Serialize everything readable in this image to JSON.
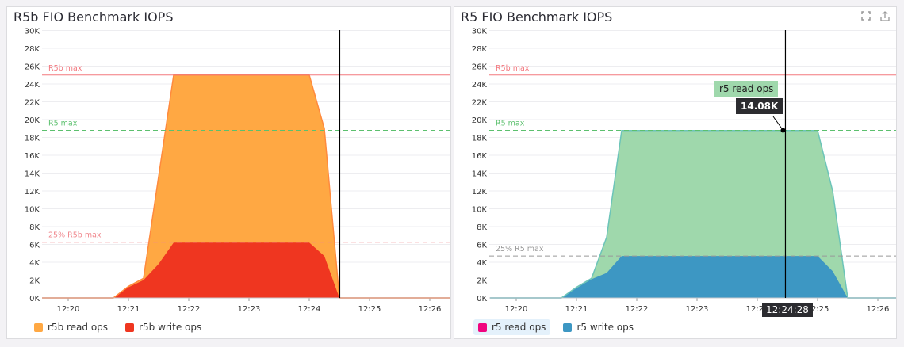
{
  "chart_data": [
    {
      "type": "area",
      "stacked": true,
      "title": "R5b FIO Benchmark IOPS",
      "xlim": [
        "12:19:34",
        "12:26:20"
      ],
      "ylim": [
        0,
        30
      ],
      "y_unit_suffix": "K",
      "yticks": [
        "0K",
        "2K",
        "4K",
        "6K",
        "8K",
        "10K",
        "12K",
        "14K",
        "16K",
        "18K",
        "20K",
        "22K",
        "24K",
        "26K",
        "28K",
        "30K"
      ],
      "xticks": [
        "12:20",
        "12:21",
        "12:22",
        "12:23",
        "12:24",
        "12:25",
        "12:26"
      ],
      "grid": true,
      "legend_placement": "bottom-left",
      "x": [
        "12:19:34",
        "12:20:45",
        "12:21:00",
        "12:21:15",
        "12:21:30",
        "12:21:45",
        "12:24:00",
        "12:24:15",
        "12:24:30",
        "12:26:20"
      ],
      "series": [
        {
          "name": "r5b write ops",
          "color": "#ef3620",
          "stroke": "#ef3620",
          "values": [
            0,
            0,
            1.2,
            2.0,
            3.8,
            6.2,
            6.2,
            4.7,
            0,
            0
          ]
        },
        {
          "name": "r5b read ops",
          "color": "#ffa843",
          "stroke": "#ff8a3d",
          "values": [
            0,
            0,
            0.1,
            0.2,
            9.8,
            18.8,
            18.8,
            14.3,
            0,
            0
          ]
        }
      ],
      "markers": [
        {
          "label": "R5b max",
          "value": 25,
          "color": "#f4787f",
          "style": "solid"
        },
        {
          "label": "R5 max",
          "value": 18.8,
          "color": "#5cc06e",
          "style": "dashed"
        },
        {
          "label": "25% R5b max",
          "value": 6.25,
          "color": "#f0878d",
          "style": "dashed"
        }
      ],
      "cursor_time": "12:24:28"
    },
    {
      "type": "area",
      "stacked": true,
      "title": "R5 FIO Benchmark IOPS",
      "xlim": [
        "12:19:34",
        "12:26:20"
      ],
      "ylim": [
        0,
        30
      ],
      "y_unit_suffix": "K",
      "yticks": [
        "0K",
        "2K",
        "4K",
        "6K",
        "8K",
        "10K",
        "12K",
        "14K",
        "16K",
        "18K",
        "20K",
        "22K",
        "24K",
        "26K",
        "28K",
        "30K"
      ],
      "xticks": [
        "12:20",
        "12:21",
        "12:22",
        "12:23",
        "12:24",
        "12:25",
        "12:26"
      ],
      "grid": true,
      "legend_placement": "bottom-left",
      "x": [
        "12:19:34",
        "12:20:45",
        "12:21:00",
        "12:21:15",
        "12:21:30",
        "12:21:45",
        "12:25:00",
        "12:25:15",
        "12:25:30",
        "12:26:20"
      ],
      "series": [
        {
          "name": "r5 write ops",
          "color": "#3d97c3",
          "stroke": "#3d97c3",
          "values": [
            0,
            0,
            1.1,
            2.1,
            2.8,
            4.7,
            4.7,
            3.0,
            0,
            0
          ]
        },
        {
          "name": "r5 read ops",
          "color": "#9fd8ac",
          "stroke": "#6cc4b9",
          "legend_color": "#f0047f",
          "values": [
            0,
            0,
            0.1,
            0.1,
            4.0,
            14.08,
            14.08,
            9.0,
            0,
            0
          ]
        }
      ],
      "markers": [
        {
          "label": "R5b max",
          "value": 25,
          "color": "#f4787f",
          "style": "solid"
        },
        {
          "label": "R5 max",
          "value": 18.8,
          "color": "#5cc06e",
          "style": "dashed"
        },
        {
          "label": "25% R5 max",
          "value": 4.7,
          "color": "#999999",
          "style": "dashed"
        }
      ],
      "cursor_time": "12:24:28",
      "tooltip": {
        "series": "r5 read ops",
        "value": "14.08K",
        "time": "12:24:28"
      }
    }
  ],
  "panels": [
    {
      "title": "R5b FIO Benchmark IOPS",
      "legend": [
        {
          "label": "r5b read ops",
          "color": "#ffa843"
        },
        {
          "label": "r5b write ops",
          "color": "#ef3620"
        }
      ]
    },
    {
      "title": "R5 FIO Benchmark IOPS",
      "legend": [
        {
          "label": "r5 read ops",
          "color": "#f0047f"
        },
        {
          "label": "r5 write ops",
          "color": "#3d97c3"
        }
      ],
      "icons": [
        "expand-icon",
        "share-icon"
      ]
    }
  ]
}
